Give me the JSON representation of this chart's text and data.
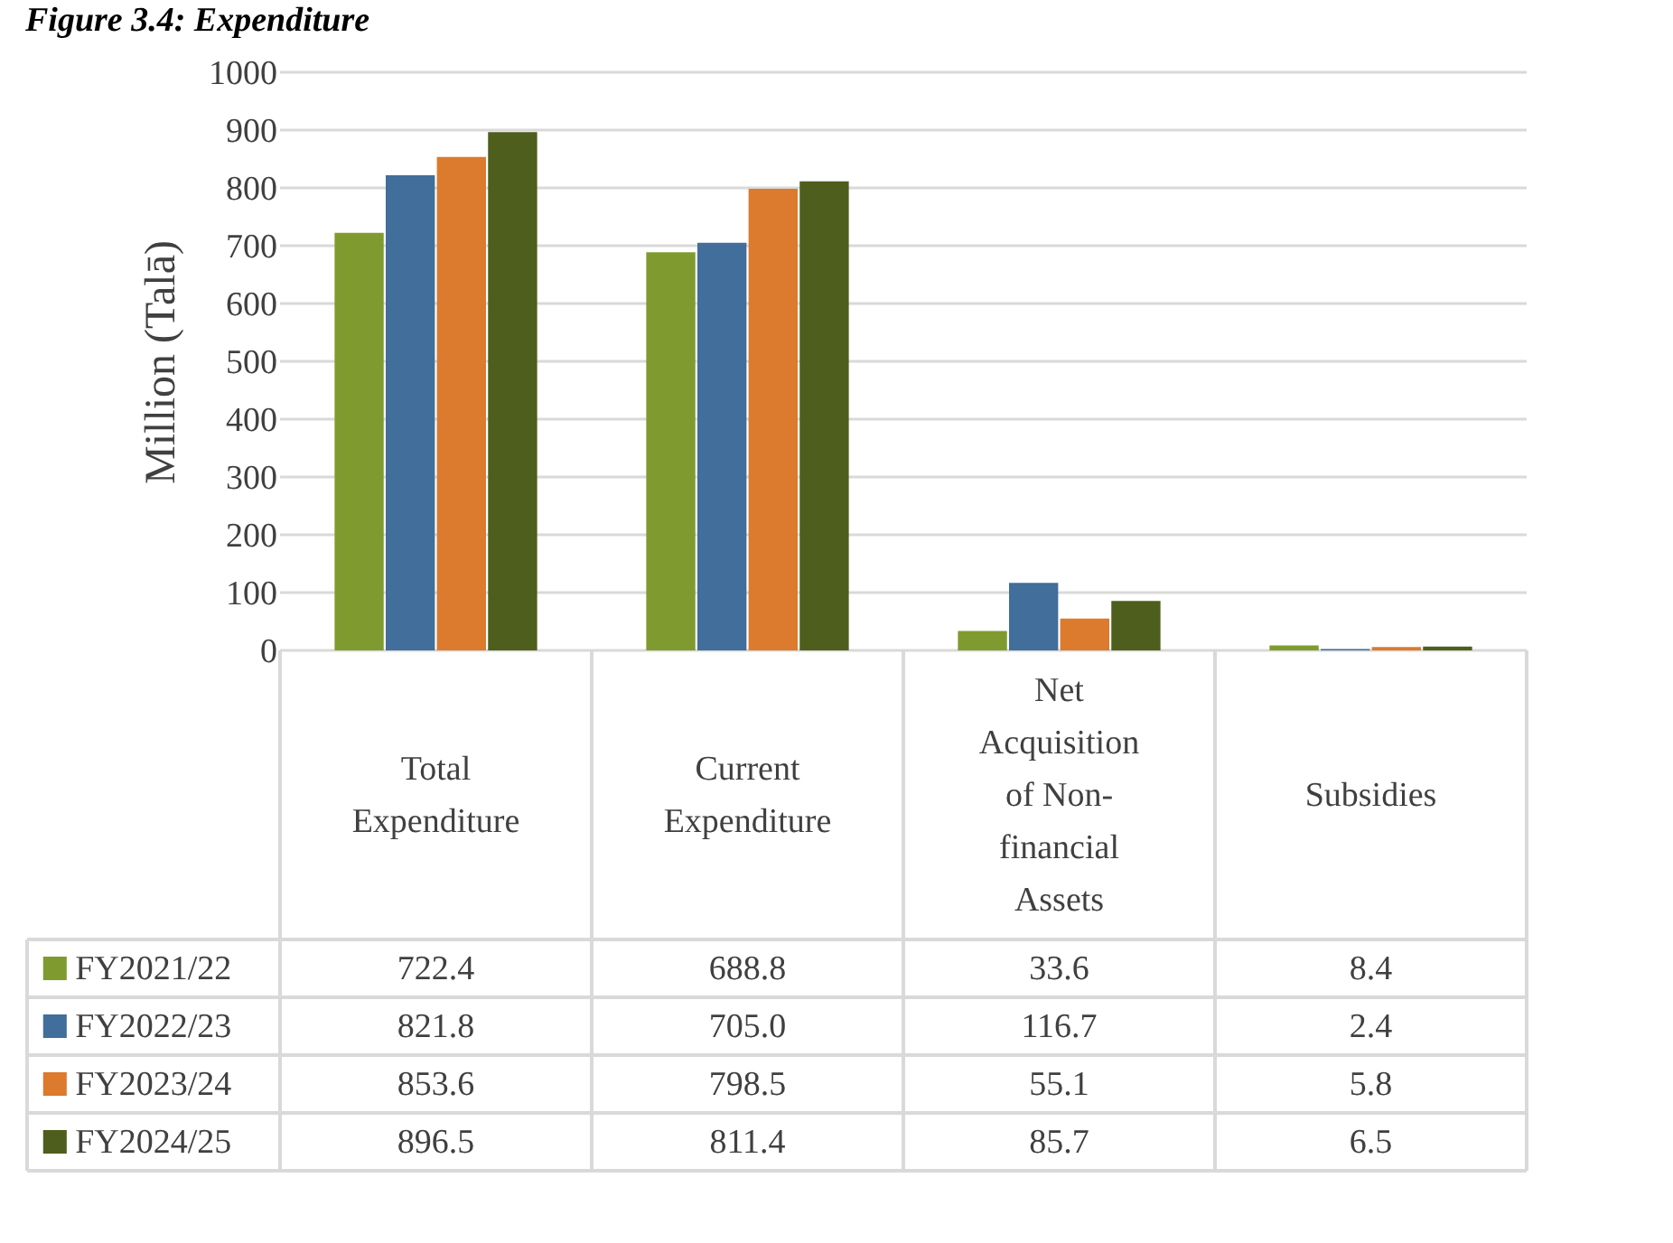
{
  "chart_data": {
    "type": "bar",
    "title": "Figure 3.4: Expenditure",
    "ylabel": "Million (Talā)",
    "categories": [
      "Total Expenditure",
      "Current Expenditure",
      "Net Acquisition of Non-financial Assets",
      "Subsidies"
    ],
    "series": [
      {
        "name": "FY2021/22",
        "color": "#7f9b2f",
        "values": [
          722.4,
          688.8,
          33.6,
          8.4
        ],
        "value_labels": [
          "722.4",
          "688.8",
          "33.6",
          "8.4"
        ]
      },
      {
        "name": "FY2022/23",
        "color": "#416e9b",
        "values": [
          821.8,
          705.0,
          116.7,
          2.4
        ],
        "value_labels": [
          "821.8",
          "705.0",
          "116.7",
          "2.4"
        ]
      },
      {
        "name": "FY2023/24",
        "color": "#dc7a2d",
        "values": [
          853.6,
          798.5,
          55.1,
          5.8
        ],
        "value_labels": [
          "853.6",
          "798.5",
          "55.1",
          "5.8"
        ]
      },
      {
        "name": "FY2024/25",
        "color": "#4e5e1c",
        "values": [
          896.5,
          811.4,
          85.7,
          6.5
        ],
        "value_labels": [
          "896.5",
          "811.4",
          "85.7",
          "6.5"
        ]
      }
    ],
    "ylim": [
      0,
      1000
    ],
    "yticks": [
      0,
      100,
      200,
      300,
      400,
      500,
      600,
      700,
      800,
      900,
      1000
    ],
    "grid": "y",
    "legend": "bottom"
  }
}
